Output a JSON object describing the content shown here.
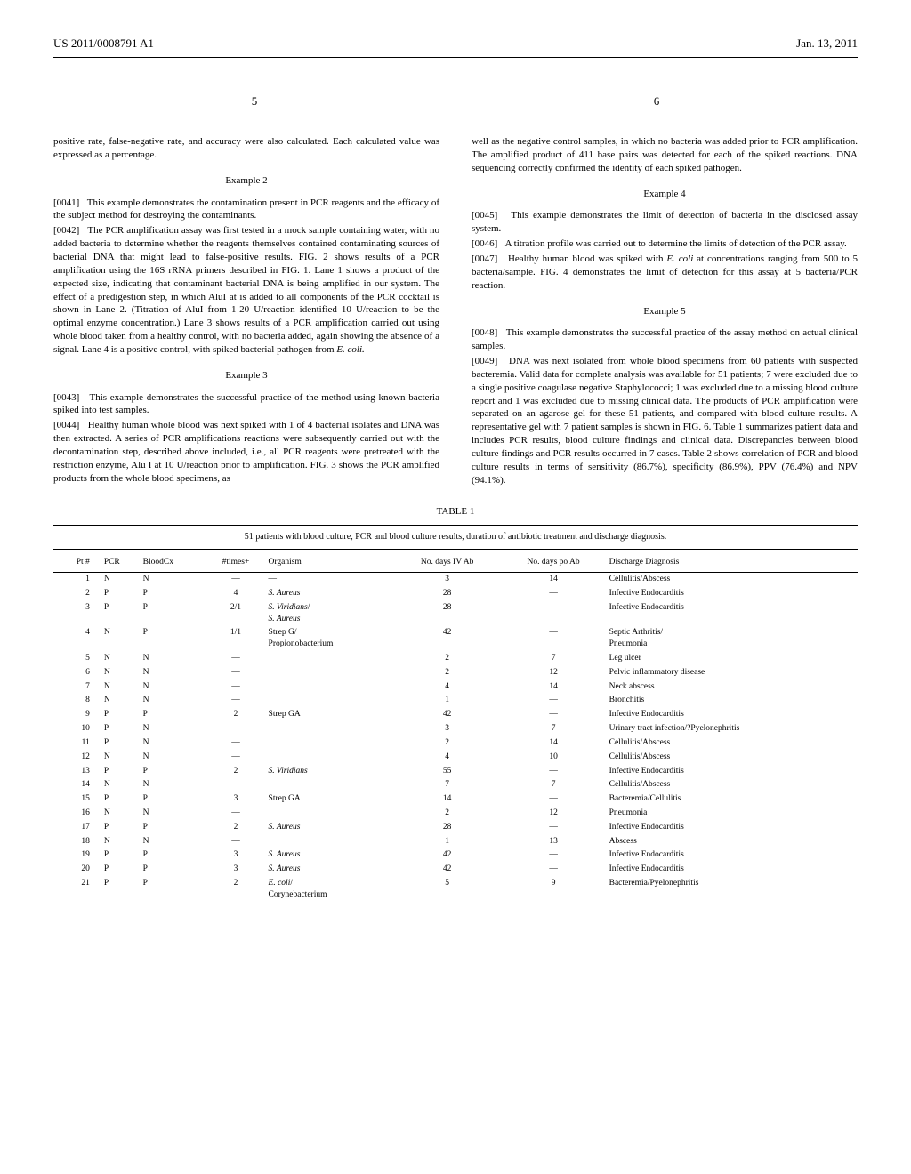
{
  "header": {
    "pub_number": "US 2011/0008791 A1",
    "pub_date": "Jan. 13, 2011"
  },
  "page_left": "5",
  "page_right": "6",
  "left_col": {
    "cont_text": "positive rate, false-negative rate, and accuracy were also calculated. Each calculated value was expressed as a percentage.",
    "ex2_heading": "Example 2",
    "p0041_num": "[0041]",
    "p0041": "This example demonstrates the contamination present in PCR reagents and the efficacy of the subject method for destroying the contaminants.",
    "p0042_num": "[0042]",
    "p0042": "The PCR amplification assay was first tested in a mock sample containing water, with no added bacteria to determine whether the reagents themselves contained contaminating sources of bacterial DNA that might lead to false-positive results. FIG. 2 shows results of a PCR amplification using the 16S rRNA primers described in FIG. 1. Lane 1 shows a product of the expected size, indicating that contaminant bacterial DNA is being amplified in our system. The effect of a predigestion step, in which AluI at is added to all components of the PCR cocktail is shown in Lane 2. (Titration of AluI from 1-20 U/reaction identified 10 U/reaction to be the optimal enzyme concentration.) Lane 3 shows results of a PCR amplification carried out using whole blood taken from a healthy control, with no bacteria added, again showing the absence of a signal. Lane 4 is a positive control, with spiked bacterial pathogen from ",
    "p0042_italic": "E. coli.",
    "ex3_heading": "Example 3",
    "p0043_num": "[0043]",
    "p0043": "This example demonstrates the successful practice of the method using known bacteria spiked into test samples.",
    "p0044_num": "[0044]",
    "p0044": "Healthy human whole blood was next spiked with 1 of 4 bacterial isolates and DNA was then extracted. A series of PCR amplifications reactions were subsequently carried out with the decontamination step, described above included, i.e., all PCR reagents were pretreated with the restriction enzyme, Alu I at 10 U/reaction prior to amplification. FIG. 3 shows the PCR amplified products from the whole blood specimens, as"
  },
  "right_col": {
    "cont_text": "well as the negative control samples, in which no bacteria was added prior to PCR amplification. The amplified product of 411 base pairs was detected for each of the spiked reactions. DNA sequencing correctly confirmed the identity of each spiked pathogen.",
    "ex4_heading": "Example 4",
    "p0045_num": "[0045]",
    "p0045": "This example demonstrates the limit of detection of bacteria in the disclosed assay system.",
    "p0046_num": "[0046]",
    "p0046": "A titration profile was carried out to determine the limits of detection of the PCR assay.",
    "p0047_num": "[0047]",
    "p0047_a": "Healthy human blood was spiked with ",
    "p0047_italic": "E. coli",
    "p0047_b": " at concentrations ranging from 500 to 5 bacteria/sample. FIG. 4 demonstrates the limit of detection for this assay at 5 bacteria/PCR reaction.",
    "ex5_heading": "Example 5",
    "p0048_num": "[0048]",
    "p0048": "This example demonstrates the successful practice of the assay method on actual clinical samples.",
    "p0049_num": "[0049]",
    "p0049": "DNA was next isolated from whole blood specimens from 60 patients with suspected bacteremia. Valid data for complete analysis was available for 51 patients; 7 were excluded due to a single positive coagulase negative Staphylococci; 1 was excluded due to a missing blood culture report and 1 was excluded due to missing clinical data. The products of PCR amplification were separated on an agarose gel for these 51 patients, and compared with blood culture results. A representative gel with 7 patient samples is shown in FIG. 6. Table 1 summarizes patient data and includes PCR results, blood culture findings and clinical data. Discrepancies between blood culture findings and PCR results occurred in 7 cases. Table 2 shows correlation of PCR and blood culture results in terms of sensitivity (86.7%), specificity (86.9%), PPV (76.4%) and NPV (94.1%)."
  },
  "table1": {
    "label": "TABLE 1",
    "caption": "51 patients with blood culture, PCR and blood culture results, duration of antibiotic treatment and discharge diagnosis.",
    "columns": [
      "Pt #",
      "PCR",
      "BloodCx",
      "#times+",
      "Organism",
      "No. days IV Ab",
      "No. days po Ab",
      "Discharge Diagnosis"
    ],
    "rows": [
      [
        "1",
        "N",
        "N",
        "—",
        "—",
        "3",
        "14",
        "Cellulitis/Abscess"
      ],
      [
        "2",
        "P",
        "P",
        "4",
        "S. Aureus",
        "28",
        "—",
        "Infective Endocarditis"
      ],
      [
        "3",
        "P",
        "P",
        "2/1",
        "S. Viridians/\nS. Aureus",
        "28",
        "—",
        "Infective Endocarditis"
      ],
      [
        "4",
        "N",
        "P",
        "1/1",
        "Strep G/\nPropionobacterium",
        "42",
        "—",
        "Septic Arthritis/\nPneumonia"
      ],
      [
        "5",
        "N",
        "N",
        "—",
        "",
        "2",
        "7",
        "Leg ulcer"
      ],
      [
        "6",
        "N",
        "N",
        "—",
        "",
        "2",
        "12",
        "Pelvic inflammatory disease"
      ],
      [
        "7",
        "N",
        "N",
        "—",
        "",
        "4",
        "14",
        "Neck abscess"
      ],
      [
        "8",
        "N",
        "N",
        "—",
        "",
        "1",
        "—",
        "Bronchitis"
      ],
      [
        "9",
        "P",
        "P",
        "2",
        "Strep GA",
        "42",
        "—",
        "Infective Endocarditis"
      ],
      [
        "10",
        "P",
        "N",
        "—",
        "",
        "3",
        "7",
        "Urinary tract infection/?Pyelonephritis"
      ],
      [
        "11",
        "P",
        "N",
        "—",
        "",
        "2",
        "14",
        "Cellulitis/Abscess"
      ],
      [
        "12",
        "N",
        "N",
        "—",
        "",
        "4",
        "10",
        "Cellulitis/Abscess"
      ],
      [
        "13",
        "P",
        "P",
        "2",
        "S. Viridians",
        "55",
        "—",
        "Infective Endocarditis"
      ],
      [
        "14",
        "N",
        "N",
        "—",
        "",
        "7",
        "7",
        "Cellulitis/Abscess"
      ],
      [
        "15",
        "P",
        "P",
        "3",
        "Strep GA",
        "14",
        "—",
        "Bacteremia/Cellulitis"
      ],
      [
        "16",
        "N",
        "N",
        "—",
        "",
        "2",
        "12",
        "Pneumonia"
      ],
      [
        "17",
        "P",
        "P",
        "2",
        "S. Aureus",
        "28",
        "—",
        "Infective Endocarditis"
      ],
      [
        "18",
        "N",
        "N",
        "—",
        "",
        "1",
        "13",
        "Abscess"
      ],
      [
        "19",
        "P",
        "P",
        "3",
        "S. Aureus",
        "42",
        "—",
        "Infective Endocarditis"
      ],
      [
        "20",
        "P",
        "P",
        "3",
        "S. Aureus",
        "42",
        "—",
        "Infective Endocarditis"
      ],
      [
        "21",
        "P",
        "P",
        "2",
        "E. coli/\nCorynebacterium",
        "5",
        "9",
        "Bacteremia/Pyelonephritis"
      ]
    ],
    "italic_organisms": [
      "S. Aureus",
      "S. Viridians",
      "E. coli"
    ]
  }
}
